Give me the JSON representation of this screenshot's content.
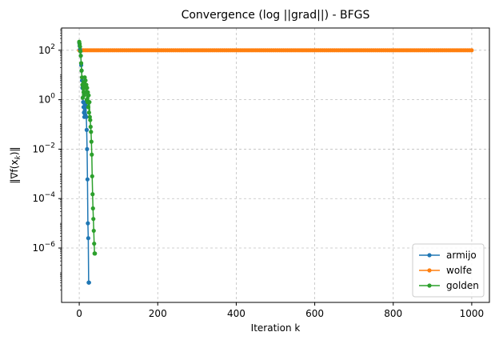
{
  "chart_data": {
    "type": "line",
    "title": "Convergence (log ||grad||) - BFGS",
    "xlabel": "Iteration k",
    "ylabel": "‖∇f(x_k)‖",
    "xlim": [
      -45,
      1045
    ],
    "yscale": "log",
    "ylim_exp": [
      -8.2,
      2.9
    ],
    "xticks": [
      0,
      200,
      400,
      600,
      800,
      1000
    ],
    "yticks_exp": [
      2,
      0,
      -2,
      -4,
      -6
    ],
    "grid": true,
    "legend_position": "lower-right",
    "series": [
      {
        "name": "armijo",
        "color": "#1f77b4",
        "x": [
          0,
          1,
          2,
          3,
          4,
          5,
          6,
          7,
          8,
          9,
          10,
          11,
          12,
          13,
          14,
          15,
          16,
          17,
          18,
          19,
          20,
          21,
          22,
          23,
          24,
          25
        ],
        "y": [
          200,
          150,
          110,
          90,
          60,
          25,
          15,
          6,
          3,
          1.2,
          0.8,
          0.5,
          0.3,
          0.2,
          0.35,
          0.25,
          0.6,
          0.8,
          0.2,
          0.06,
          0.01,
          0.0006,
          1e-05,
          2.5e-06,
          4e-08,
          4e-08
        ]
      },
      {
        "name": "wolfe",
        "color": "#ff7f0e",
        "x_start": 0,
        "x_end": 1000,
        "x_step": 5,
        "y_start": 100,
        "y_const": 100
      },
      {
        "name": "golden",
        "color": "#2ca02c",
        "x": [
          0,
          1,
          2,
          3,
          4,
          5,
          6,
          7,
          8,
          9,
          10,
          11,
          12,
          13,
          14,
          15,
          16,
          17,
          18,
          19,
          20,
          21,
          22,
          23,
          24,
          25,
          26,
          27,
          28,
          29,
          30,
          31,
          32,
          33,
          34,
          35,
          36,
          37,
          38,
          39,
          40
        ],
        "y": [
          220,
          180,
          140,
          90,
          60,
          30,
          15,
          8,
          4,
          1.2,
          3,
          2,
          1.5,
          5,
          8,
          3,
          6,
          2,
          4,
          1,
          3,
          0.8,
          2,
          0.5,
          1.5,
          0.3,
          0.8,
          0.2,
          0.15,
          0.08,
          0.05,
          0.02,
          0.006,
          0.0008,
          0.00015,
          4e-05,
          1.5e-05,
          5e-06,
          1.5e-06,
          6e-07,
          6e-07
        ]
      }
    ]
  }
}
